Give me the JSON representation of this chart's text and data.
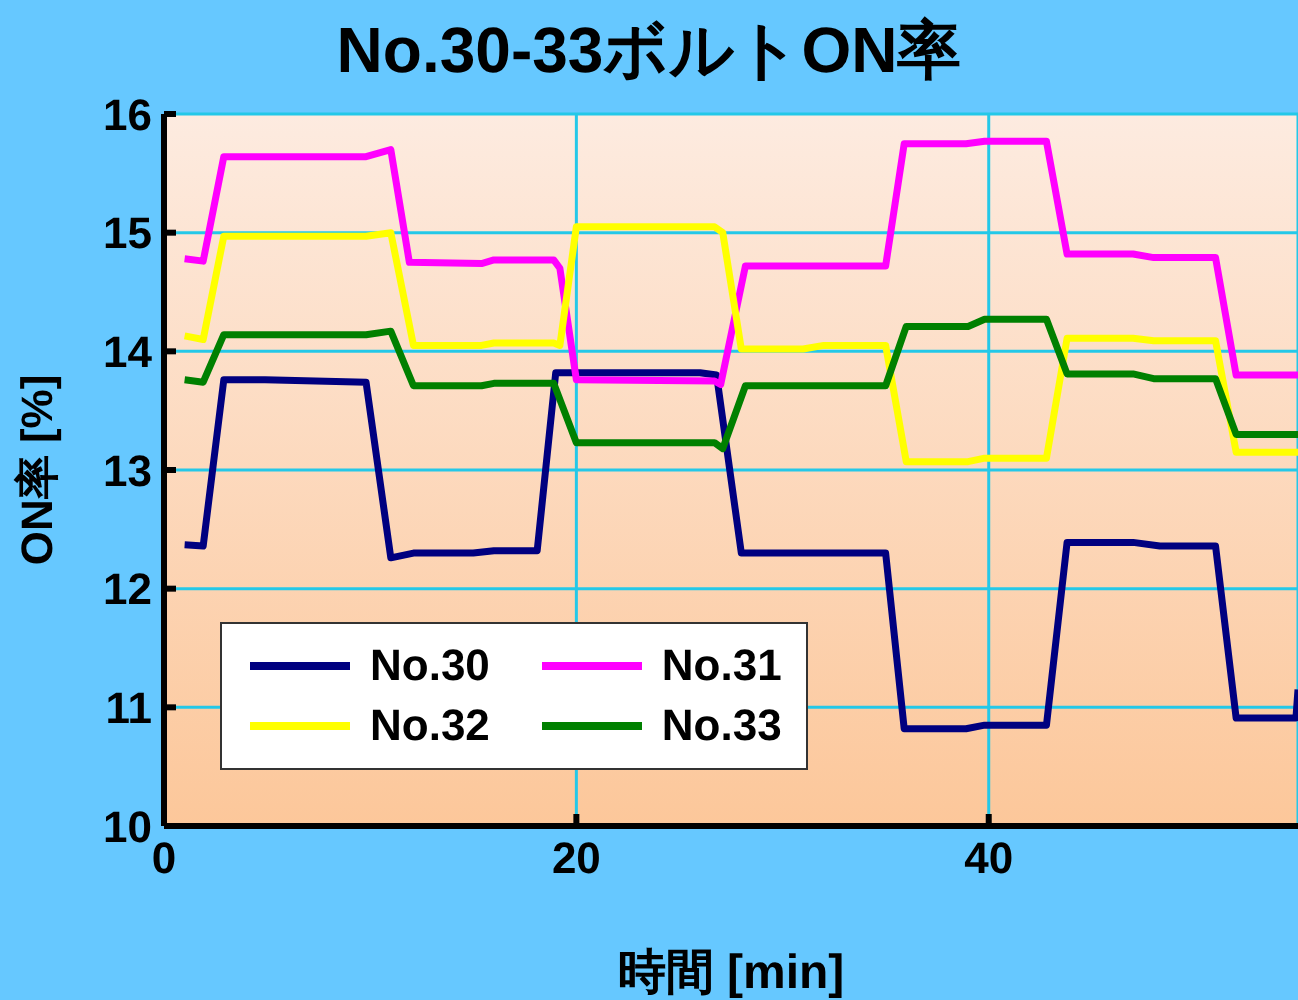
{
  "chart_data": {
    "type": "line",
    "title": "No.30-33ボルトON率",
    "xlabel": "時間 [min]",
    "ylabel": "ON率 [%]",
    "xlim": [
      0,
      55
    ],
    "xticks": [
      0,
      20,
      40
    ],
    "ylim": [
      10,
      16
    ],
    "yticks": [
      10,
      11,
      12,
      13,
      14,
      15,
      16
    ],
    "grid": true,
    "legend": "bottom left",
    "marker": "none",
    "line_style": "solid",
    "series": [
      {
        "name": "No.30",
        "color": "#000080",
        "x": [
          1,
          1.9,
          2.9,
          4.9,
          9.8,
          11,
          12.1,
          15,
          16,
          18.1,
          19,
          26,
          26.8,
          28,
          35,
          35.9,
          38.9,
          39.8,
          42.8,
          43.8,
          47,
          48.3,
          51,
          52,
          54.9,
          55
        ],
        "values": [
          12.37,
          12.36,
          13.76,
          13.76,
          13.74,
          12.26,
          12.3,
          12.3,
          12.32,
          12.32,
          13.82,
          13.82,
          13.8,
          12.3,
          12.3,
          10.82,
          10.82,
          10.85,
          10.85,
          12.39,
          12.39,
          12.36,
          12.36,
          10.91,
          10.91,
          11.15
        ]
      },
      {
        "name": "No.31",
        "color": "#ff00ff",
        "x": [
          1,
          1.9,
          2.9,
          9.8,
          11,
          11.9,
          15.4,
          16,
          18.9,
          19.2,
          20,
          26.7,
          27,
          28.2,
          35,
          35.9,
          38.9,
          39.8,
          42.8,
          43.8,
          47,
          48,
          51,
          52,
          55
        ],
        "values": [
          14.78,
          14.76,
          15.64,
          15.64,
          15.7,
          14.75,
          14.74,
          14.77,
          14.77,
          14.7,
          13.76,
          13.75,
          13.72,
          14.72,
          14.72,
          15.75,
          15.75,
          15.77,
          15.77,
          14.82,
          14.82,
          14.79,
          14.79,
          13.8,
          13.8
        ]
      },
      {
        "name": "No.32",
        "color": "#ffff00",
        "x": [
          1,
          1.9,
          2.9,
          9.8,
          11,
          12.1,
          15.4,
          16,
          18.9,
          19.2,
          20,
          26.7,
          27.1,
          28,
          31,
          32,
          35,
          36,
          39,
          39.8,
          42.8,
          43.8,
          47,
          48,
          51,
          52,
          55
        ],
        "values": [
          14.13,
          14.1,
          14.97,
          14.97,
          15,
          14.05,
          14.05,
          14.07,
          14.07,
          14.05,
          15.05,
          15.05,
          15,
          14.02,
          14.02,
          14.05,
          14.05,
          13.07,
          13.07,
          13.1,
          13.1,
          14.11,
          14.11,
          14.09,
          14.09,
          13.15,
          13.15
        ]
      },
      {
        "name": "No.33",
        "color": "#008000",
        "x": [
          1,
          1.9,
          2.9,
          9.8,
          11,
          12.1,
          15.4,
          16,
          18.9,
          20,
          26.7,
          27.1,
          28.2,
          35,
          36,
          39,
          39.8,
          42.8,
          43.8,
          47,
          48,
          51,
          52,
          55
        ],
        "values": [
          13.76,
          13.74,
          14.14,
          14.14,
          14.17,
          13.71,
          13.71,
          13.73,
          13.73,
          13.23,
          13.23,
          13.18,
          13.71,
          13.71,
          14.21,
          14.21,
          14.27,
          14.27,
          13.81,
          13.81,
          13.77,
          13.77,
          13.3,
          13.3
        ]
      }
    ]
  }
}
